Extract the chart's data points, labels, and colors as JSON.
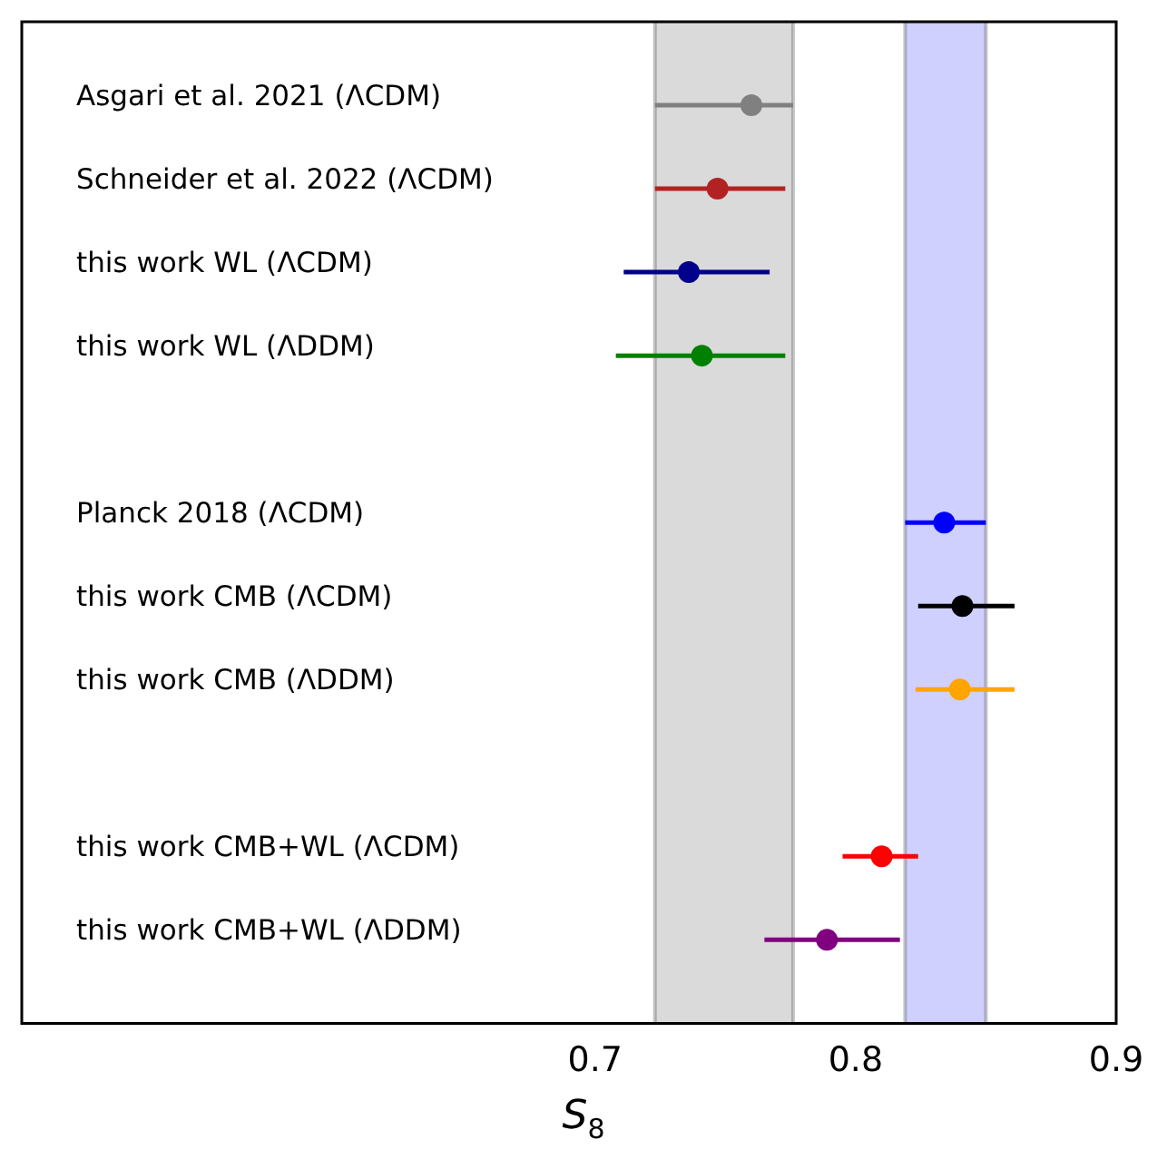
{
  "chart_data": {
    "type": "scatter",
    "orientation": "horizontal",
    "xlabel": "S$_{8}$",
    "categories": [
      "Asgari et al. 2021 (ΛCDM)",
      "Schneider et al. 2022 (ΛCDM)",
      "this work WL (ΛCDM)",
      "this work WL (ΛDDM)",
      null,
      "Planck 2018 (ΛCDM)",
      "this work CMB (ΛCDM)",
      "this work CMB (ΛDDM)",
      null,
      "this work CMB+WL (ΛCDM)",
      "this work CMB+WL (ΛDDM)"
    ],
    "values": [
      0.76,
      0.747,
      0.736,
      0.741,
      null,
      0.834,
      0.841,
      0.84,
      null,
      0.81,
      0.789
    ],
    "errors": [
      [
        0.723,
        0.776
      ],
      [
        0.723,
        0.773
      ],
      [
        0.711,
        0.767
      ],
      [
        0.708,
        0.773
      ],
      null,
      [
        0.819,
        0.85
      ],
      [
        0.824,
        0.861
      ],
      [
        0.823,
        0.861
      ],
      null,
      [
        0.795,
        0.824
      ],
      [
        0.765,
        0.817
      ]
    ],
    "colors": [
      "#808080",
      "#b22222",
      "#00008b",
      "#008000",
      null,
      "#0000ff",
      "#000000",
      "#ffa500",
      null,
      "#ff0000",
      "#800080"
    ],
    "xlim": [
      0.48,
      0.9
    ],
    "xticks": [
      0.7,
      0.8,
      0.9
    ],
    "bands": [
      {
        "axis": "x",
        "from": 0.723,
        "to": 0.776,
        "color": "#d3d3d3"
      },
      {
        "axis": "x",
        "from": 0.819,
        "to": 0.85,
        "color": "#c8c8ff"
      }
    ],
    "marker": "circle",
    "grid": false,
    "legend": false
  }
}
